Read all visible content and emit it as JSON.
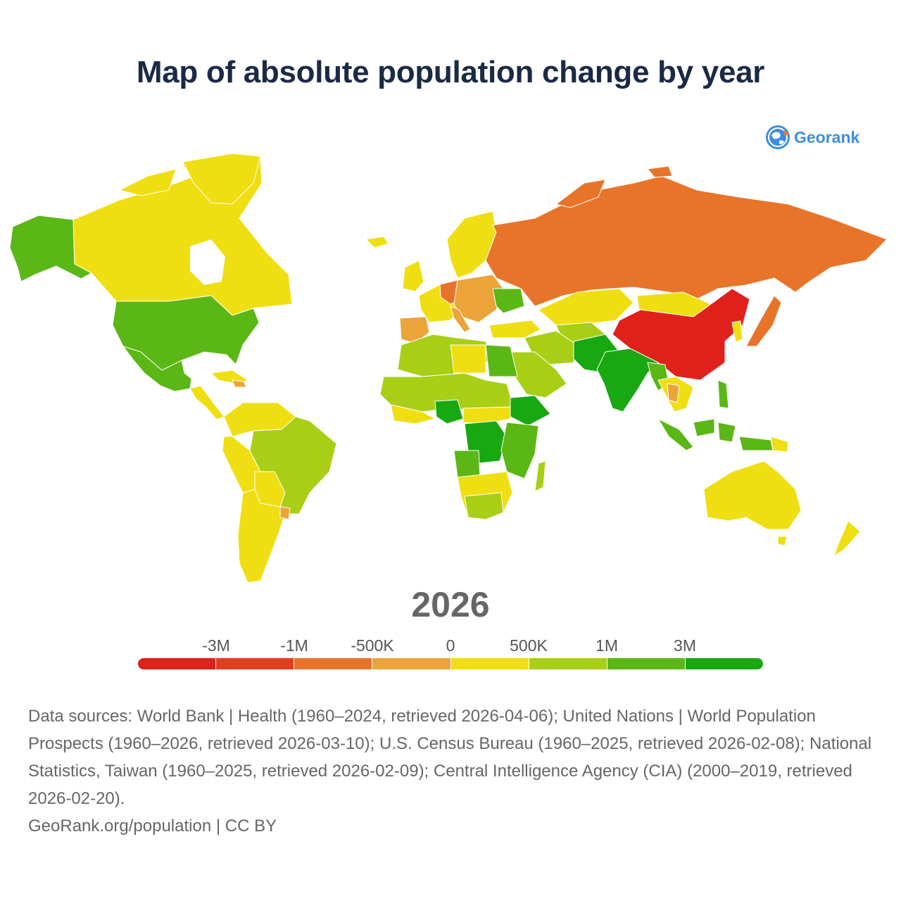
{
  "title": "Map of absolute population change by year",
  "logo": {
    "text": "Georank",
    "icon": "globe-icon"
  },
  "year": "2026",
  "legend": {
    "labels": [
      "-3M",
      "-1M",
      "-500K",
      "0",
      "500K",
      "1M",
      "3M"
    ],
    "colors": [
      "#e0201b",
      "#e43d1e",
      "#e8742a",
      "#eca33a",
      "#efdf12",
      "#a8cf16",
      "#5bb715",
      "#18a812"
    ]
  },
  "map_colors": {
    "strong_decline": "#e0201b",
    "decline": "#e8742a",
    "slight_decline": "#eca33a",
    "slight_growth": "#efdf12",
    "growth": "#a8cf16",
    "strong_growth": "#5bb715",
    "very_strong_growth": "#18a812"
  },
  "footer": {
    "sources": "Data sources: World Bank | Health (1960–2024, retrieved 2026-04-06); United Nations | World Population Prospects (1960–2026, retrieved 2026-03-10); U.S. Census Bureau (1960–2025, retrieved 2026-02-08); National Statistics, Taiwan (1960–2025, retrieved 2026-02-09); Central Intelligence Agency (CIA) (2000–2019, retrieved 2026-02-20).",
    "credit": "GeoRank.org/population | CC BY"
  }
}
